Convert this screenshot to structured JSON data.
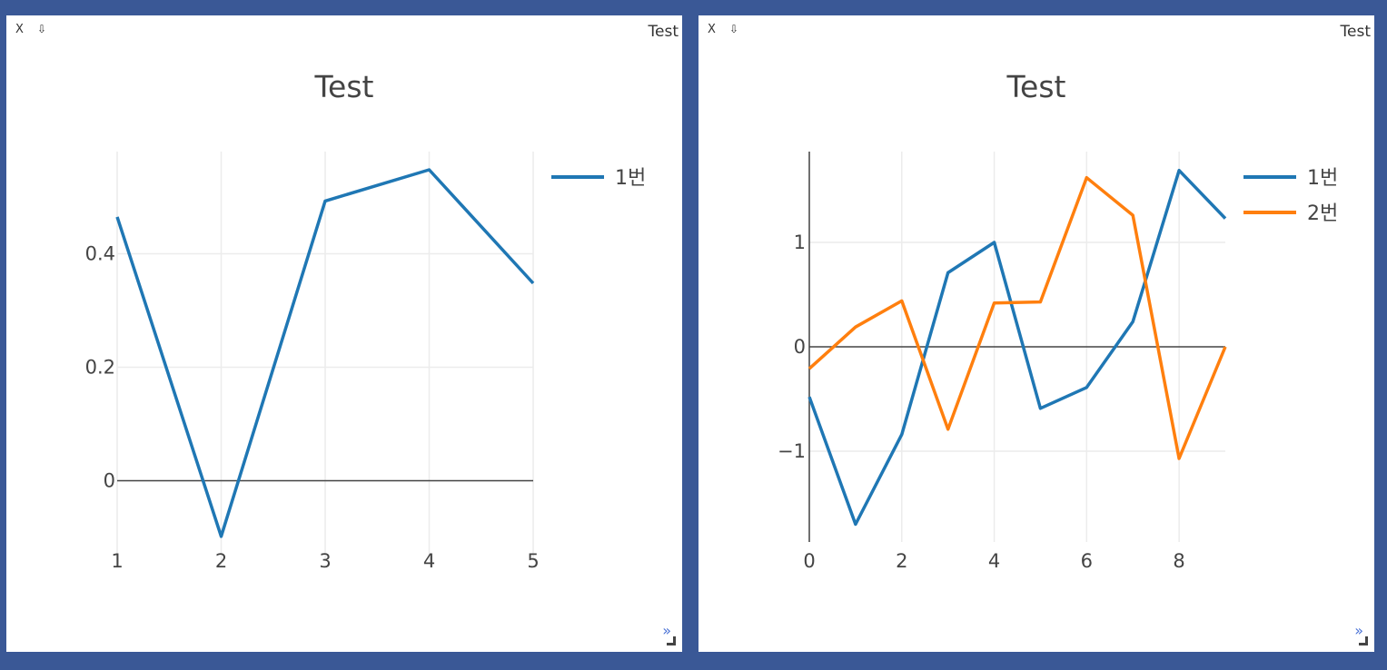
{
  "panels": [
    {
      "close_label": "X",
      "pin_label": "⇩",
      "title": "Test",
      "expand_label": "»"
    },
    {
      "close_label": "X",
      "pin_label": "⇩",
      "title": "Test",
      "expand_label": "»"
    }
  ],
  "chart_data": [
    {
      "type": "line",
      "title": "Test",
      "xlim": [
        1,
        5
      ],
      "ylim": [
        -0.14,
        0.58
      ],
      "xticks": [
        {
          "value": 1,
          "label": "1"
        },
        {
          "value": 2,
          "label": "2"
        },
        {
          "value": 3,
          "label": "3"
        },
        {
          "value": 4,
          "label": "4"
        },
        {
          "value": 5,
          "label": "5"
        }
      ],
      "yticks": [
        {
          "value": 0,
          "label": "0"
        },
        {
          "value": 0.2,
          "label": "0.2"
        },
        {
          "value": 0.4,
          "label": "0.4"
        }
      ],
      "grid": true,
      "legend_position": "top-right",
      "series": [
        {
          "name": "1번",
          "color": "#1f77b4",
          "x": [
            1,
            2,
            3,
            4,
            5
          ],
          "y": [
            0.465,
            -0.098,
            0.493,
            0.548,
            0.348
          ]
        }
      ]
    },
    {
      "type": "line",
      "title": "Test",
      "xlim": [
        0,
        9
      ],
      "ylim": [
        -1.87,
        1.87
      ],
      "xticks": [
        {
          "value": 0,
          "label": "0"
        },
        {
          "value": 2,
          "label": "2"
        },
        {
          "value": 4,
          "label": "4"
        },
        {
          "value": 6,
          "label": "6"
        },
        {
          "value": 8,
          "label": "8"
        }
      ],
      "yticks": [
        {
          "value": -1,
          "label": "−1"
        },
        {
          "value": 0,
          "label": "0"
        },
        {
          "value": 1,
          "label": "1"
        }
      ],
      "grid": true,
      "legend_position": "top-right",
      "series": [
        {
          "name": "1번",
          "color": "#1f77b4",
          "x": [
            0,
            1,
            2,
            3,
            4,
            5,
            6,
            7,
            8,
            9
          ],
          "y": [
            -0.48,
            -1.7,
            -0.84,
            0.71,
            1.0,
            -0.59,
            -0.39,
            0.24,
            1.69,
            1.23
          ]
        },
        {
          "name": "2번",
          "color": "#ff7f0e",
          "x": [
            0,
            1,
            2,
            3,
            4,
            5,
            6,
            7,
            8,
            9
          ],
          "y": [
            -0.21,
            0.19,
            0.44,
            -0.79,
            0.42,
            0.43,
            1.62,
            1.26,
            -1.07,
            0.0
          ]
        }
      ]
    }
  ]
}
